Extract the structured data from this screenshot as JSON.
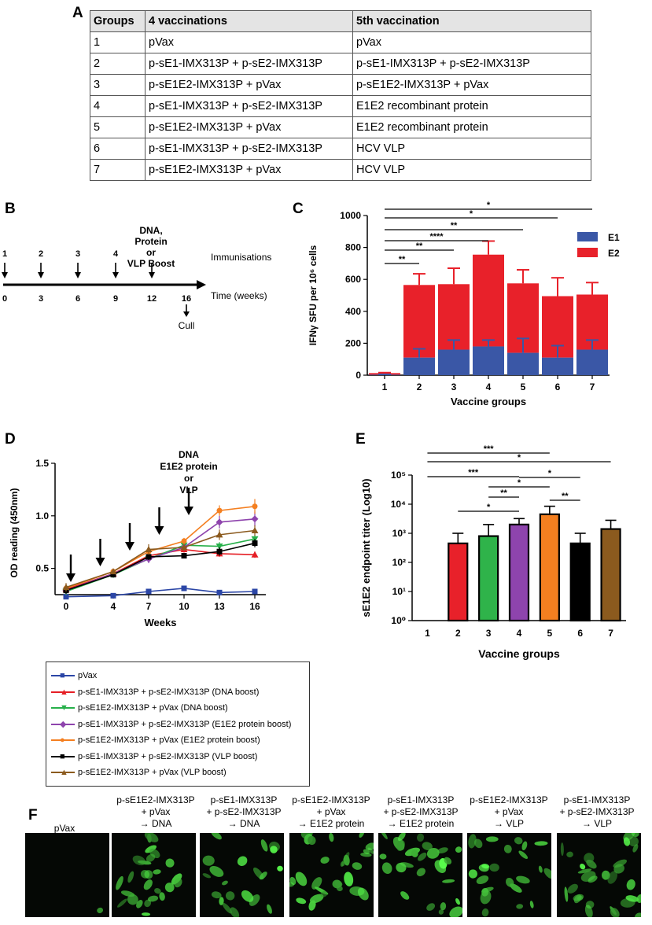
{
  "panels": {
    "a": "A",
    "b": "B",
    "c": "C",
    "d": "D",
    "e": "E",
    "f": "F"
  },
  "table": {
    "headers": [
      "Groups",
      "4 vaccinations",
      "5th vaccination"
    ],
    "rows": [
      [
        "1",
        "pVax",
        "pVax"
      ],
      [
        "2",
        "p-sE1-IMX313P + p-sE2-IMX313P",
        "p-sE1-IMX313P + p-sE2-IMX313P"
      ],
      [
        "3",
        "p-sE1E2-IMX313P + pVax",
        "p-sE1E2-IMX313P + pVax"
      ],
      [
        "4",
        "p-sE1-IMX313P + p-sE2-IMX313P",
        "E1E2 recombinant protein"
      ],
      [
        "5",
        "p-sE1E2-IMX313P + pVax",
        "E1E2 recombinant protein"
      ],
      [
        "6",
        "p-sE1-IMX313P + p-sE2-IMX313P",
        "HCV VLP"
      ],
      [
        "7",
        "p-sE1E2-IMX313P + pVax",
        "HCV VLP"
      ]
    ]
  },
  "timeline": {
    "immunisation_numbers": [
      "1",
      "2",
      "3",
      "4"
    ],
    "week_labels": [
      "0",
      "3",
      "6",
      "9",
      "12",
      "16"
    ],
    "boost_label": [
      "DNA,",
      "Protein",
      "or",
      "VLP Boost"
    ],
    "immunisations_label": "Immunisations",
    "time_label": "Time (weeks)",
    "cull_label": "Cull"
  },
  "chart_data": [
    {
      "id": "C",
      "type": "bar",
      "stacked": true,
      "categories": [
        "1",
        "2",
        "3",
        "4",
        "5",
        "6",
        "7"
      ],
      "series": [
        {
          "name": "E1",
          "color": "#3a57a6",
          "values": [
            3,
            110,
            160,
            180,
            140,
            110,
            160
          ],
          "errors": [
            2,
            55,
            60,
            40,
            90,
            75,
            60
          ]
        },
        {
          "name": "E2",
          "color": "#e8212a",
          "values": [
            10,
            455,
            410,
            575,
            435,
            385,
            345
          ],
          "errors": [
            3,
            70,
            100,
            85,
            85,
            115,
            75
          ]
        }
      ],
      "ylabel": "IFNγ SFU per 10⁶ cells",
      "xlabel": "Vaccine groups",
      "ylim": [
        0,
        1000
      ],
      "yticks": [
        "0",
        "200",
        "400",
        "600",
        "800",
        "1000"
      ],
      "significance": [
        {
          "from": "1",
          "to": "2",
          "label": "**"
        },
        {
          "from": "1",
          "to": "3",
          "label": "**"
        },
        {
          "from": "1",
          "to": "4",
          "label": "****"
        },
        {
          "from": "1",
          "to": "5",
          "label": "**"
        },
        {
          "from": "1",
          "to": "6",
          "label": "*"
        },
        {
          "from": "1",
          "to": "7",
          "label": "*"
        }
      ]
    },
    {
      "id": "D",
      "type": "line",
      "x": [
        0,
        4,
        7,
        10,
        13,
        16
      ],
      "xticks": [
        "0",
        "4",
        "7",
        "10",
        "13",
        "16"
      ],
      "xlabel": "Weeks",
      "ylabel": "OD reading (450nm)",
      "ylim": [
        0.25,
        1.5
      ],
      "yticks": [
        "0.5",
        "1.0",
        "1.5"
      ],
      "annotation": [
        "DNA",
        "E1E2 protein",
        "or",
        "VLP"
      ],
      "series": [
        {
          "name": "pVax",
          "color": "#2b46a6",
          "marker": "square",
          "values": [
            0.23,
            0.24,
            0.28,
            0.31,
            0.27,
            0.28
          ],
          "errors": [
            0.01,
            0.01,
            0.01,
            0.01,
            0.01,
            0.01
          ]
        },
        {
          "name": "p-sE1-IMX313P + p-sE2-IMX313P (DNA boost)",
          "color": "#e51e25",
          "marker": "triangle-up",
          "values": [
            0.3,
            0.45,
            0.62,
            0.68,
            0.64,
            0.63
          ],
          "errors": [
            0.03,
            0.02,
            0.04,
            0.03,
            0.03,
            0.03
          ]
        },
        {
          "name": "p-sE1E2-IMX313P + pVax (DNA boost)",
          "color": "#27b04a",
          "marker": "triangle-down",
          "values": [
            0.28,
            0.44,
            0.59,
            0.72,
            0.71,
            0.78
          ],
          "errors": [
            0.03,
            0.02,
            0.03,
            0.04,
            0.04,
            0.04
          ]
        },
        {
          "name": "p-sE1-IMX313P + p-sE2-IMX313P (E1E2 protein boost)",
          "color": "#8e44ad",
          "marker": "diamond",
          "values": [
            0.29,
            0.45,
            0.59,
            0.7,
            0.94,
            0.97
          ],
          "errors": [
            0.03,
            0.02,
            0.04,
            0.03,
            0.06,
            0.07
          ]
        },
        {
          "name": "p-sE1E2-IMX313P + pVax (E1E2 protein boost)",
          "color": "#f47f20",
          "marker": "circle",
          "values": [
            0.31,
            0.47,
            0.66,
            0.76,
            1.05,
            1.09
          ],
          "errors": [
            0.04,
            0.02,
            0.04,
            0.03,
            0.05,
            0.07
          ]
        },
        {
          "name": "p-sE1-IMX313P + p-sE2-IMX313P (VLP boost)",
          "color": "#000000",
          "marker": "square",
          "values": [
            0.29,
            0.44,
            0.61,
            0.62,
            0.66,
            0.74
          ],
          "errors": [
            0.03,
            0.02,
            0.03,
            0.02,
            0.04,
            0.04
          ]
        },
        {
          "name": "p-sE1E2-IMX313P + pVax (VLP boost)",
          "color": "#8b5a1e",
          "marker": "triangle-up",
          "values": [
            0.32,
            0.47,
            0.68,
            0.7,
            0.82,
            0.86
          ],
          "errors": [
            0.04,
            0.02,
            0.05,
            0.03,
            0.05,
            0.05
          ]
        }
      ]
    },
    {
      "id": "E",
      "type": "bar",
      "log_scale": true,
      "categories": [
        "1",
        "2",
        "3",
        "4",
        "5",
        "6",
        "7"
      ],
      "values": [
        null,
        450,
        800,
        2000,
        4500,
        450,
        1400
      ],
      "upper_errors": [
        null,
        1000,
        2000,
        3200,
        8500,
        1000,
        2800
      ],
      "colors": [
        "#ffffff",
        "#e8212a",
        "#2fb34a",
        "#8e44ad",
        "#f47f20",
        "#000000",
        "#8b5a1e"
      ],
      "ylabel": "sE1E2 endpoint titer (Log10)",
      "xlabel": "Vaccine groups",
      "ylim": [
        1,
        100000
      ],
      "yticks": [
        "10⁰",
        "10¹",
        "10²",
        "10³",
        "10⁴",
        "10⁵"
      ],
      "significance": [
        {
          "from": "1",
          "to": "5",
          "label": "***"
        },
        {
          "from": "1",
          "to": "7",
          "label": "*"
        },
        {
          "from": "1",
          "to": "4",
          "label": "***"
        },
        {
          "from": "4",
          "to": "6",
          "label": "*"
        },
        {
          "from": "3",
          "to": "5",
          "label": "*"
        },
        {
          "from": "3",
          "to": "4",
          "label": "**"
        },
        {
          "from": "5",
          "to": "6",
          "label": "**"
        },
        {
          "from": "2",
          "to": "4",
          "label": "*"
        }
      ]
    }
  ],
  "legend": {
    "items": [
      "pVax",
      "p-sE1-IMX313P + p-sE2-IMX313P (DNA boost)",
      "p-sE1E2-IMX313P + pVax (DNA boost)",
      "p-sE1-IMX313P + p-sE2-IMX313P (E1E2 protein boost)",
      "p-sE1E2-IMX313P + pVax (E1E2 protein boost)",
      "p-sE1-IMX313P + p-sE2-IMX313P (VLP boost)",
      "p-sE1E2-IMX313P + pVax (VLP boost)"
    ]
  },
  "microscopy": {
    "labels": [
      [
        "pVax"
      ],
      [
        "p-sE1E2-IMX313P",
        "+ pVax",
        "→ DNA"
      ],
      [
        "p-sE1-IMX313P",
        "+ p-sE2-IMX313P",
        "→ DNA"
      ],
      [
        "p-sE1E2-IMX313P",
        "+ pVax",
        "→ E1E2 protein"
      ],
      [
        "p-sE1-IMX313P",
        "+ p-sE2-IMX313P",
        "→ E1E2 protein"
      ],
      [
        "p-sE1E2-IMX313P",
        "+ pVax",
        "→ VLP"
      ],
      [
        "p-sE1-IMX313P",
        "+ p-sE2-IMX313P",
        "→ VLP"
      ]
    ],
    "brightness": [
      0.02,
      0.75,
      0.6,
      0.85,
      0.8,
      0.7,
      0.9
    ]
  }
}
